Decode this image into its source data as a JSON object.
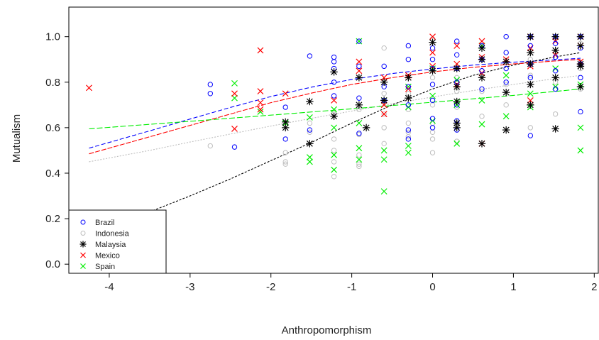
{
  "chart_data": {
    "type": "scatter",
    "title": "",
    "xlabel": "Anthropomorphism",
    "ylabel": "Mutualism",
    "xlim": [
      -4.5,
      2.05
    ],
    "ylim": [
      -0.04,
      1.13
    ],
    "x_ticks": [
      -4,
      -3,
      -2,
      -1,
      0,
      1,
      2
    ],
    "y_ticks": [
      0.0,
      0.2,
      0.4,
      0.6,
      0.8,
      1.0
    ],
    "x_tick_labels": [
      "-4",
      "-3",
      "-2",
      "-1",
      "0",
      "1",
      "2"
    ],
    "y_tick_labels": [
      "0.0",
      "0.2",
      "0.4",
      "0.6",
      "0.8",
      "1.0"
    ],
    "grid": false,
    "legend_position": "bottom-left",
    "series": [
      {
        "name": "Brazil",
        "color": "#0000ff",
        "marker": "circle",
        "points": [
          [
            -2.75,
            0.79
          ],
          [
            -2.75,
            0.75
          ],
          [
            -2.45,
            0.515
          ],
          [
            -1.82,
            0.69
          ],
          [
            -1.82,
            0.55
          ],
          [
            -1.52,
            0.915
          ],
          [
            -1.52,
            0.59
          ],
          [
            -1.22,
            0.91
          ],
          [
            -1.22,
            0.89
          ],
          [
            -1.22,
            0.86
          ],
          [
            -1.22,
            0.8
          ],
          [
            -1.22,
            0.74
          ],
          [
            -0.91,
            0.98
          ],
          [
            -0.91,
            0.87
          ],
          [
            -0.91,
            0.73
          ],
          [
            -0.91,
            0.575
          ],
          [
            -0.6,
            0.87
          ],
          [
            -0.6,
            0.78
          ],
          [
            -0.6,
            0.72
          ],
          [
            -0.3,
            0.96
          ],
          [
            -0.3,
            0.9
          ],
          [
            -0.3,
            0.78
          ],
          [
            -0.3,
            0.7
          ],
          [
            -0.3,
            0.59
          ],
          [
            -0.3,
            0.55
          ],
          [
            0.0,
            0.95
          ],
          [
            0.0,
            0.9
          ],
          [
            0.0,
            0.86
          ],
          [
            0.0,
            0.79
          ],
          [
            0.0,
            0.72
          ],
          [
            0.0,
            0.64
          ],
          [
            0.0,
            0.6
          ],
          [
            0.3,
            0.98
          ],
          [
            0.3,
            0.92
          ],
          [
            0.3,
            0.86
          ],
          [
            0.3,
            0.8
          ],
          [
            0.3,
            0.7
          ],
          [
            0.3,
            0.63
          ],
          [
            0.3,
            0.59
          ],
          [
            0.61,
            0.96
          ],
          [
            0.61,
            0.9
          ],
          [
            0.61,
            0.85
          ],
          [
            0.61,
            0.77
          ],
          [
            0.91,
            1.0
          ],
          [
            0.91,
            0.93
          ],
          [
            0.91,
            0.86
          ],
          [
            0.91,
            0.8
          ],
          [
            1.21,
            1.0
          ],
          [
            1.21,
            0.96
          ],
          [
            1.21,
            0.88
          ],
          [
            1.21,
            0.82
          ],
          [
            1.21,
            0.565
          ],
          [
            1.52,
            1.0
          ],
          [
            1.52,
            0.97
          ],
          [
            1.52,
            0.91
          ],
          [
            1.52,
            0.85
          ],
          [
            1.52,
            0.77
          ],
          [
            1.83,
            1.0
          ],
          [
            1.83,
            0.95
          ],
          [
            1.83,
            0.88
          ],
          [
            1.83,
            0.82
          ],
          [
            1.83,
            0.67
          ]
        ],
        "trend": [
          [
            -4.25,
            0.51
          ],
          [
            -3.5,
            0.586
          ],
          [
            -3.0,
            0.638
          ],
          [
            -2.5,
            0.689
          ],
          [
            -2.0,
            0.737
          ],
          [
            -1.5,
            0.778
          ],
          [
            -1.0,
            0.812
          ],
          [
            -0.5,
            0.838
          ],
          [
            0.0,
            0.858
          ],
          [
            0.5,
            0.875
          ],
          [
            1.0,
            0.888
          ],
          [
            1.5,
            0.898
          ],
          [
            1.83,
            0.905
          ]
        ]
      },
      {
        "name": "Indonesia",
        "color": "#bebebe",
        "marker": "circle",
        "points": [
          [
            -2.75,
            0.52
          ],
          [
            -1.82,
            0.45
          ],
          [
            -1.82,
            0.44
          ],
          [
            -1.82,
            0.49
          ],
          [
            -1.52,
            0.62
          ],
          [
            -1.52,
            0.58
          ],
          [
            -1.22,
            0.66
          ],
          [
            -1.22,
            0.55
          ],
          [
            -1.22,
            0.5
          ],
          [
            -1.22,
            0.45
          ],
          [
            -1.22,
            0.385
          ],
          [
            -0.91,
            0.68
          ],
          [
            -0.91,
            0.57
          ],
          [
            -0.91,
            0.48
          ],
          [
            -0.91,
            0.44
          ],
          [
            -0.91,
            0.43
          ],
          [
            -0.6,
            0.95
          ],
          [
            -0.6,
            0.75
          ],
          [
            -0.6,
            0.66
          ],
          [
            -0.6,
            0.6
          ],
          [
            -0.6,
            0.53
          ],
          [
            -0.3,
            0.75
          ],
          [
            -0.3,
            0.68
          ],
          [
            -0.3,
            0.62
          ],
          [
            -0.3,
            0.58
          ],
          [
            -0.3,
            0.56
          ],
          [
            0.0,
            0.99
          ],
          [
            0.0,
            0.82
          ],
          [
            0.0,
            0.7
          ],
          [
            0.0,
            0.62
          ],
          [
            0.0,
            0.58
          ],
          [
            0.0,
            0.55
          ],
          [
            0.0,
            0.49
          ],
          [
            0.3,
            0.82
          ],
          [
            0.3,
            0.76
          ],
          [
            0.3,
            0.69
          ],
          [
            0.3,
            0.62
          ],
          [
            0.3,
            0.54
          ],
          [
            0.61,
            0.85
          ],
          [
            0.61,
            0.76
          ],
          [
            0.61,
            0.65
          ],
          [
            0.91,
            0.79
          ],
          [
            0.91,
            0.7
          ],
          [
            1.21,
            0.9
          ],
          [
            1.21,
            0.83
          ],
          [
            1.21,
            0.6
          ],
          [
            1.52,
            0.93
          ],
          [
            1.52,
            0.8
          ],
          [
            1.52,
            0.66
          ],
          [
            1.83,
            0.97
          ],
          [
            1.83,
            0.86
          ],
          [
            1.83,
            0.77
          ]
        ],
        "trend": [
          [
            -4.25,
            0.45
          ],
          [
            -3.5,
            0.5
          ],
          [
            -3.0,
            0.537
          ],
          [
            -2.5,
            0.572
          ],
          [
            -2.0,
            0.607
          ],
          [
            -1.5,
            0.641
          ],
          [
            -1.0,
            0.673
          ],
          [
            -0.5,
            0.705
          ],
          [
            0.0,
            0.735
          ],
          [
            0.5,
            0.763
          ],
          [
            1.0,
            0.79
          ],
          [
            1.5,
            0.815
          ],
          [
            1.83,
            0.83
          ]
        ]
      },
      {
        "name": "Malaysia",
        "color": "#000000",
        "marker": "asterisk",
        "points": [
          [
            -1.82,
            0.625
          ],
          [
            -1.82,
            0.6
          ],
          [
            -1.52,
            0.715
          ],
          [
            -1.52,
            0.53
          ],
          [
            -1.22,
            0.845
          ],
          [
            -1.22,
            0.65
          ],
          [
            -0.91,
            0.82
          ],
          [
            -0.91,
            0.7
          ],
          [
            -0.82,
            0.6
          ],
          [
            -0.6,
            0.8
          ],
          [
            -0.6,
            0.72
          ],
          [
            -0.3,
            0.82
          ],
          [
            -0.3,
            0.73
          ],
          [
            0.0,
            0.975
          ],
          [
            0.0,
            0.85
          ],
          [
            0.3,
            0.86
          ],
          [
            0.3,
            0.78
          ],
          [
            0.3,
            0.715
          ],
          [
            0.3,
            0.62
          ],
          [
            0.3,
            0.6
          ],
          [
            0.61,
            0.95
          ],
          [
            0.61,
            0.9
          ],
          [
            0.61,
            0.82
          ],
          [
            0.61,
            0.53
          ],
          [
            0.91,
            0.89
          ],
          [
            0.91,
            0.755
          ],
          [
            0.91,
            0.59
          ],
          [
            1.21,
            1.0
          ],
          [
            1.21,
            0.93
          ],
          [
            1.21,
            0.88
          ],
          [
            1.21,
            0.79
          ],
          [
            1.21,
            0.7
          ],
          [
            1.52,
            1.0
          ],
          [
            1.52,
            0.94
          ],
          [
            1.52,
            0.82
          ],
          [
            1.52,
            0.595
          ],
          [
            1.83,
            1.0
          ],
          [
            1.83,
            0.96
          ],
          [
            1.83,
            0.88
          ],
          [
            1.83,
            0.87
          ],
          [
            1.83,
            0.78
          ]
        ],
        "trend": [
          [
            -3.75,
            0.2
          ],
          [
            -3.5,
            0.23
          ],
          [
            -3.0,
            0.3
          ],
          [
            -2.5,
            0.375
          ],
          [
            -2.0,
            0.455
          ],
          [
            -1.5,
            0.535
          ],
          [
            -1.0,
            0.62
          ],
          [
            -0.5,
            0.7
          ],
          [
            0.0,
            0.77
          ],
          [
            0.5,
            0.83
          ],
          [
            1.0,
            0.875
          ],
          [
            1.5,
            0.91
          ],
          [
            1.83,
            0.93
          ]
        ]
      },
      {
        "name": "Mexico",
        "color": "#ff0000",
        "marker": "cross",
        "points": [
          [
            -4.25,
            0.775
          ],
          [
            -2.45,
            0.75
          ],
          [
            -2.45,
            0.595
          ],
          [
            -2.13,
            0.94
          ],
          [
            -2.13,
            0.76
          ],
          [
            -2.13,
            0.71
          ],
          [
            -2.13,
            0.68
          ],
          [
            -1.82,
            0.75
          ],
          [
            -1.22,
            0.72
          ],
          [
            -0.91,
            0.89
          ],
          [
            -0.91,
            0.85
          ],
          [
            -0.6,
            0.82
          ],
          [
            -0.6,
            0.7
          ],
          [
            -0.6,
            0.66
          ],
          [
            -0.3,
            0.83
          ],
          [
            -0.3,
            0.77
          ],
          [
            0.0,
            1.0
          ],
          [
            0.0,
            0.93
          ],
          [
            0.0,
            0.87
          ],
          [
            0.3,
            0.96
          ],
          [
            0.3,
            0.88
          ],
          [
            0.3,
            0.79
          ],
          [
            0.61,
            0.98
          ],
          [
            0.61,
            0.91
          ],
          [
            0.61,
            0.84
          ],
          [
            0.61,
            0.53
          ],
          [
            0.91,
            0.9
          ],
          [
            1.21,
            1.0
          ],
          [
            1.21,
            0.95
          ],
          [
            1.21,
            0.87
          ],
          [
            1.21,
            0.72
          ],
          [
            1.52,
            0.98
          ],
          [
            1.52,
            0.92
          ],
          [
            1.83,
            1.0
          ],
          [
            1.83,
            0.96
          ],
          [
            1.83,
            0.89
          ]
        ],
        "trend": [
          [
            -4.25,
            0.485
          ],
          [
            -3.5,
            0.56
          ],
          [
            -3.0,
            0.61
          ],
          [
            -2.5,
            0.66
          ],
          [
            -2.0,
            0.71
          ],
          [
            -1.5,
            0.752
          ],
          [
            -1.0,
            0.79
          ],
          [
            -0.5,
            0.82
          ],
          [
            0.0,
            0.845
          ],
          [
            0.5,
            0.865
          ],
          [
            1.0,
            0.88
          ],
          [
            1.5,
            0.893
          ],
          [
            1.83,
            0.9
          ]
        ]
      },
      {
        "name": "Spain",
        "color": "#00ee00",
        "marker": "cross",
        "points": [
          [
            -2.45,
            0.795
          ],
          [
            -2.45,
            0.73
          ],
          [
            -2.13,
            0.67
          ],
          [
            -1.82,
            0.62
          ],
          [
            -1.52,
            0.645
          ],
          [
            -1.52,
            0.47
          ],
          [
            -1.52,
            0.45
          ],
          [
            -1.22,
            0.68
          ],
          [
            -1.22,
            0.6
          ],
          [
            -1.22,
            0.48
          ],
          [
            -1.22,
            0.415
          ],
          [
            -0.91,
            0.98
          ],
          [
            -0.91,
            0.62
          ],
          [
            -0.91,
            0.51
          ],
          [
            -0.91,
            0.46
          ],
          [
            -0.6,
            0.72
          ],
          [
            -0.6,
            0.5
          ],
          [
            -0.6,
            0.46
          ],
          [
            -0.6,
            0.32
          ],
          [
            -0.3,
            0.78
          ],
          [
            -0.3,
            0.69
          ],
          [
            -0.3,
            0.52
          ],
          [
            -0.3,
            0.49
          ],
          [
            0.0,
            0.86
          ],
          [
            0.0,
            0.74
          ],
          [
            0.0,
            0.63
          ],
          [
            0.3,
            0.81
          ],
          [
            0.3,
            0.7
          ],
          [
            0.3,
            0.53
          ],
          [
            0.61,
            0.96
          ],
          [
            0.61,
            0.72
          ],
          [
            0.61,
            0.615
          ],
          [
            0.91,
            0.83
          ],
          [
            0.91,
            0.65
          ],
          [
            1.21,
            0.75
          ],
          [
            1.21,
            0.69
          ],
          [
            1.52,
            0.86
          ],
          [
            1.52,
            0.78
          ],
          [
            1.83,
            0.79
          ],
          [
            1.83,
            0.6
          ],
          [
            1.83,
            0.5
          ]
        ],
        "trend": [
          [
            -4.25,
            0.595
          ],
          [
            -3.0,
            0.628
          ],
          [
            -2.0,
            0.655
          ],
          [
            -1.0,
            0.683
          ],
          [
            0.0,
            0.712
          ],
          [
            1.0,
            0.742
          ],
          [
            1.83,
            0.77
          ]
        ]
      }
    ]
  }
}
